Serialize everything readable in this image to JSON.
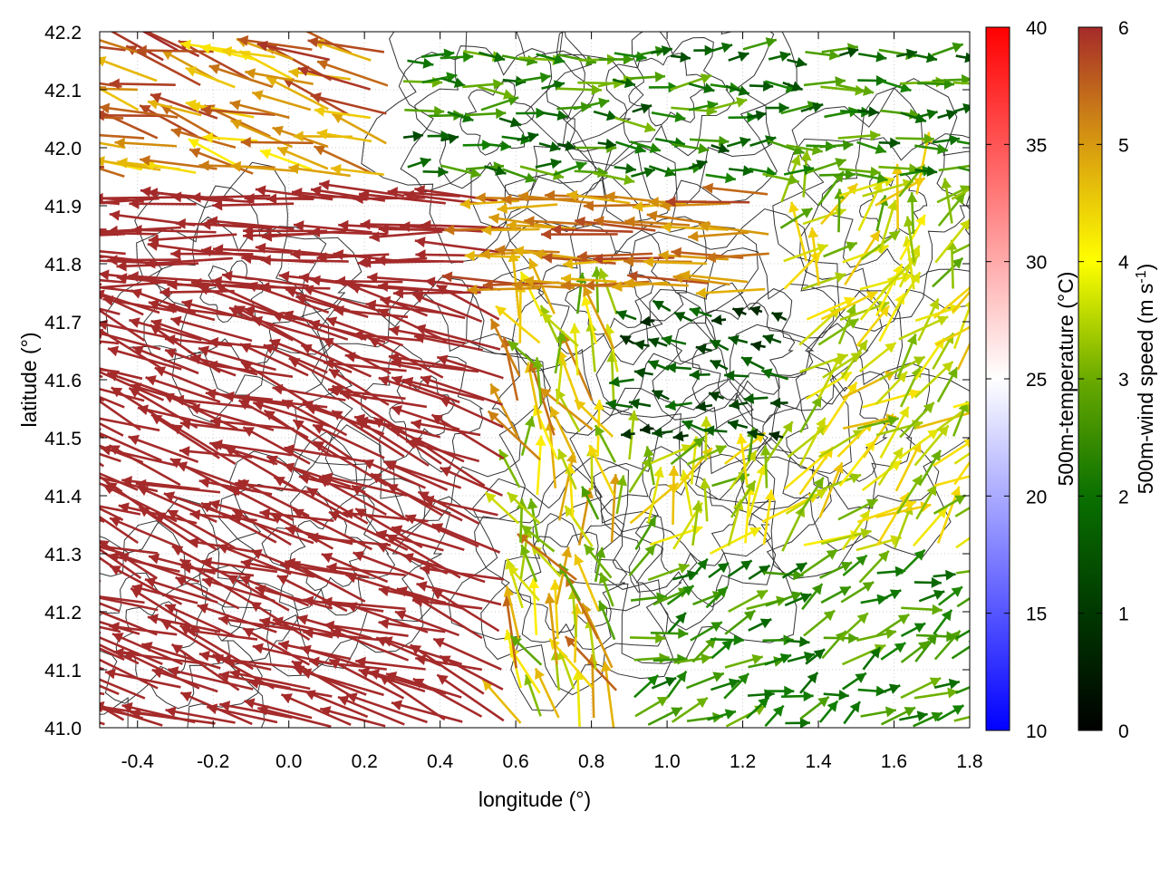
{
  "chart_data": {
    "type": "vector-field",
    "xlabel": "longitude (°)",
    "ylabel": "latitude (°)",
    "xlim": [
      -0.5,
      1.8
    ],
    "ylim": [
      41.0,
      42.2
    ],
    "xticks": [
      "-0.4",
      "-0.2",
      "0.0",
      "0.2",
      "0.4",
      "0.6",
      "0.8",
      "1.0",
      "1.2",
      "1.4",
      "1.6",
      "1.8"
    ],
    "xtick_values": [
      -0.4,
      -0.2,
      0.0,
      0.2,
      0.4,
      0.6,
      0.8,
      1.0,
      1.2,
      1.4,
      1.6,
      1.8
    ],
    "yticks": [
      "41.0",
      "41.1",
      "41.2",
      "41.3",
      "41.4",
      "41.5",
      "41.6",
      "41.7",
      "41.8",
      "41.9",
      "42.0",
      "42.1",
      "42.2"
    ],
    "ytick_values": [
      41.0,
      41.1,
      41.2,
      41.3,
      41.4,
      41.5,
      41.6,
      41.7,
      41.8,
      41.9,
      42.0,
      42.1,
      42.2
    ],
    "grid": true,
    "contours": "terrain elevation (gray lines)",
    "colorbars": [
      {
        "name": "temperature",
        "label": "500m-temperature (°C)",
        "range": [
          10,
          40
        ],
        "ticks": [
          "10",
          "15",
          "20",
          "25",
          "30",
          "35",
          "40"
        ],
        "tick_values": [
          10,
          15,
          20,
          25,
          30,
          35,
          40
        ],
        "colors": [
          "#0000ff",
          "#ffffff",
          "#ff0000"
        ]
      },
      {
        "name": "wind_speed",
        "label_main": "500m-wind speed (m s",
        "label_sup": "-1",
        "label_close": ")",
        "range": [
          0,
          6
        ],
        "ticks": [
          "0",
          "1",
          "2",
          "3",
          "4",
          "5",
          "6"
        ],
        "tick_values": [
          0,
          1,
          2,
          3,
          4,
          5,
          6
        ],
        "colors": [
          "#000000",
          "#005500",
          "#1a8a00",
          "#80b800",
          "#ffff00",
          "#e0a000",
          "#a52a2a"
        ]
      }
    ],
    "wind_regions": [
      {
        "region": "west (lon -0.5 to 0.6)",
        "direction": "from ESE toward WNW",
        "speed_ms": 6.0
      },
      {
        "region": "northwest band (lat 41.7-41.9)",
        "direction": "toward W",
        "speed_ms": 5.5
      },
      {
        "region": "north-east (lon 0.8 to 1.8, lat 42.0-42.2)",
        "direction": "toward E",
        "speed_ms": 1.5
      },
      {
        "region": "center-east calm zone (lon 0.9-1.3, lat 41.5-41.8)",
        "direction": "toward W",
        "speed_ms": 1.0
      },
      {
        "region": "south-east (lon 0.8 to 1.8, lat 41.0-41.4)",
        "direction": "toward NE",
        "speed_ms": 2.5
      },
      {
        "region": "east (lon 1.3 to 1.8, lat 41.4-41.7)",
        "direction": "toward NE",
        "speed_ms": 3.5
      }
    ]
  }
}
